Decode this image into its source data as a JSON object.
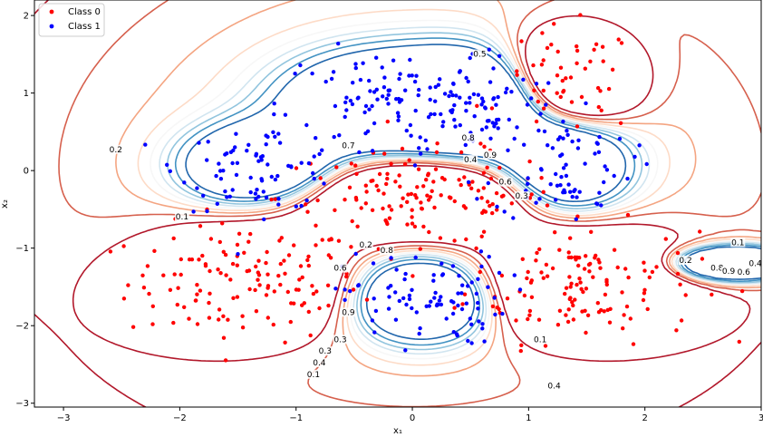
{
  "chart_data": {
    "type": "scatter",
    "title": "",
    "xlabel": "x₁",
    "ylabel": "x₂",
    "xlim": [
      -3.25,
      3.0
    ],
    "ylim": [
      -3.05,
      2.2
    ],
    "x_ticks": [
      "−3",
      "−2",
      "−1",
      "0",
      "1",
      "2",
      "3"
    ],
    "y_ticks": [
      "−3",
      "−2",
      "−1",
      "0",
      "1",
      "2"
    ],
    "legend_position": "upper-left",
    "grid": false,
    "series": [
      {
        "name": "Class 0",
        "color": "#ff0000",
        "clusters": [
          {
            "cx": -1.45,
            "cy": -1.45,
            "sx": 0.5,
            "sy": 0.38,
            "n": 130
          },
          {
            "cx": 1.45,
            "cy": -1.45,
            "sx": 0.5,
            "sy": 0.38,
            "n": 130
          },
          {
            "cx": 0.05,
            "cy": -0.35,
            "sx": 0.6,
            "sy": 0.3,
            "n": 140
          },
          {
            "cx": 1.35,
            "cy": 1.15,
            "sx": 0.3,
            "sy": 0.35,
            "n": 50
          }
        ]
      },
      {
        "name": "Class 1",
        "color": "#0000ff",
        "clusters": [
          {
            "cx": -1.3,
            "cy": 0.05,
            "sx": 0.35,
            "sy": 0.28,
            "n": 80
          },
          {
            "cx": -0.25,
            "cy": 0.85,
            "sx": 0.45,
            "sy": 0.35,
            "n": 90
          },
          {
            "cx": 0.55,
            "cy": 0.85,
            "sx": 0.35,
            "sy": 0.35,
            "n": 70
          },
          {
            "cx": 1.3,
            "cy": 0.05,
            "sx": 0.3,
            "sy": 0.35,
            "n": 70
          },
          {
            "cx": 0.1,
            "cy": -1.65,
            "sx": 0.35,
            "sy": 0.3,
            "n": 90
          }
        ]
      }
    ],
    "contour_levels": [
      0.1,
      0.2,
      0.3,
      0.4,
      0.5,
      0.6,
      0.7,
      0.8,
      0.9
    ],
    "contour_colormap": [
      "#b2182b",
      "#d6604d",
      "#f4a582",
      "#fddbc7",
      "#f7f7f7",
      "#d1e5f0",
      "#92c5de",
      "#4393c3",
      "#2166ac"
    ],
    "contour_labels": [
      {
        "text": "0.5",
        "x": 0.58,
        "y": 1.48
      },
      {
        "text": "0.2",
        "x": -2.55,
        "y": 0.25
      },
      {
        "text": "0.1",
        "x": -1.98,
        "y": -0.62
      },
      {
        "text": "0.7",
        "x": -0.55,
        "y": 0.3
      },
      {
        "text": "0.8",
        "x": 0.48,
        "y": 0.4
      },
      {
        "text": "0.9",
        "x": 0.67,
        "y": 0.18
      },
      {
        "text": "0.4",
        "x": 0.5,
        "y": 0.12
      },
      {
        "text": "0.6",
        "x": 0.8,
        "y": -0.17
      },
      {
        "text": "0.3",
        "x": 0.94,
        "y": -0.35
      },
      {
        "text": "0.2",
        "x": -0.4,
        "y": -0.98
      },
      {
        "text": "0.8",
        "x": -0.22,
        "y": -1.05
      },
      {
        "text": "0.6",
        "x": -0.62,
        "y": -1.28
      },
      {
        "text": "0.1",
        "x": 2.8,
        "y": -0.95
      },
      {
        "text": "0.2",
        "x": 2.35,
        "y": -1.18
      },
      {
        "text": "0.8",
        "x": 2.62,
        "y": -1.28
      },
      {
        "text": "0.9",
        "x": 2.72,
        "y": -1.32
      },
      {
        "text": "0.6",
        "x": 2.85,
        "y": -1.33
      },
      {
        "text": "0.4",
        "x": 2.95,
        "y": -1.22
      },
      {
        "text": "0.1",
        "x": 1.1,
        "y": -2.2
      },
      {
        "text": "0.4",
        "x": 1.22,
        "y": -2.8
      },
      {
        "text": "0.9",
        "x": -0.55,
        "y": -1.85
      },
      {
        "text": "0.3",
        "x": -0.62,
        "y": -2.2
      },
      {
        "text": "0.3",
        "x": -0.75,
        "y": -2.35
      },
      {
        "text": "0.4",
        "x": -0.8,
        "y": -2.5
      },
      {
        "text": "0.1",
        "x": -0.85,
        "y": -2.65
      }
    ]
  }
}
